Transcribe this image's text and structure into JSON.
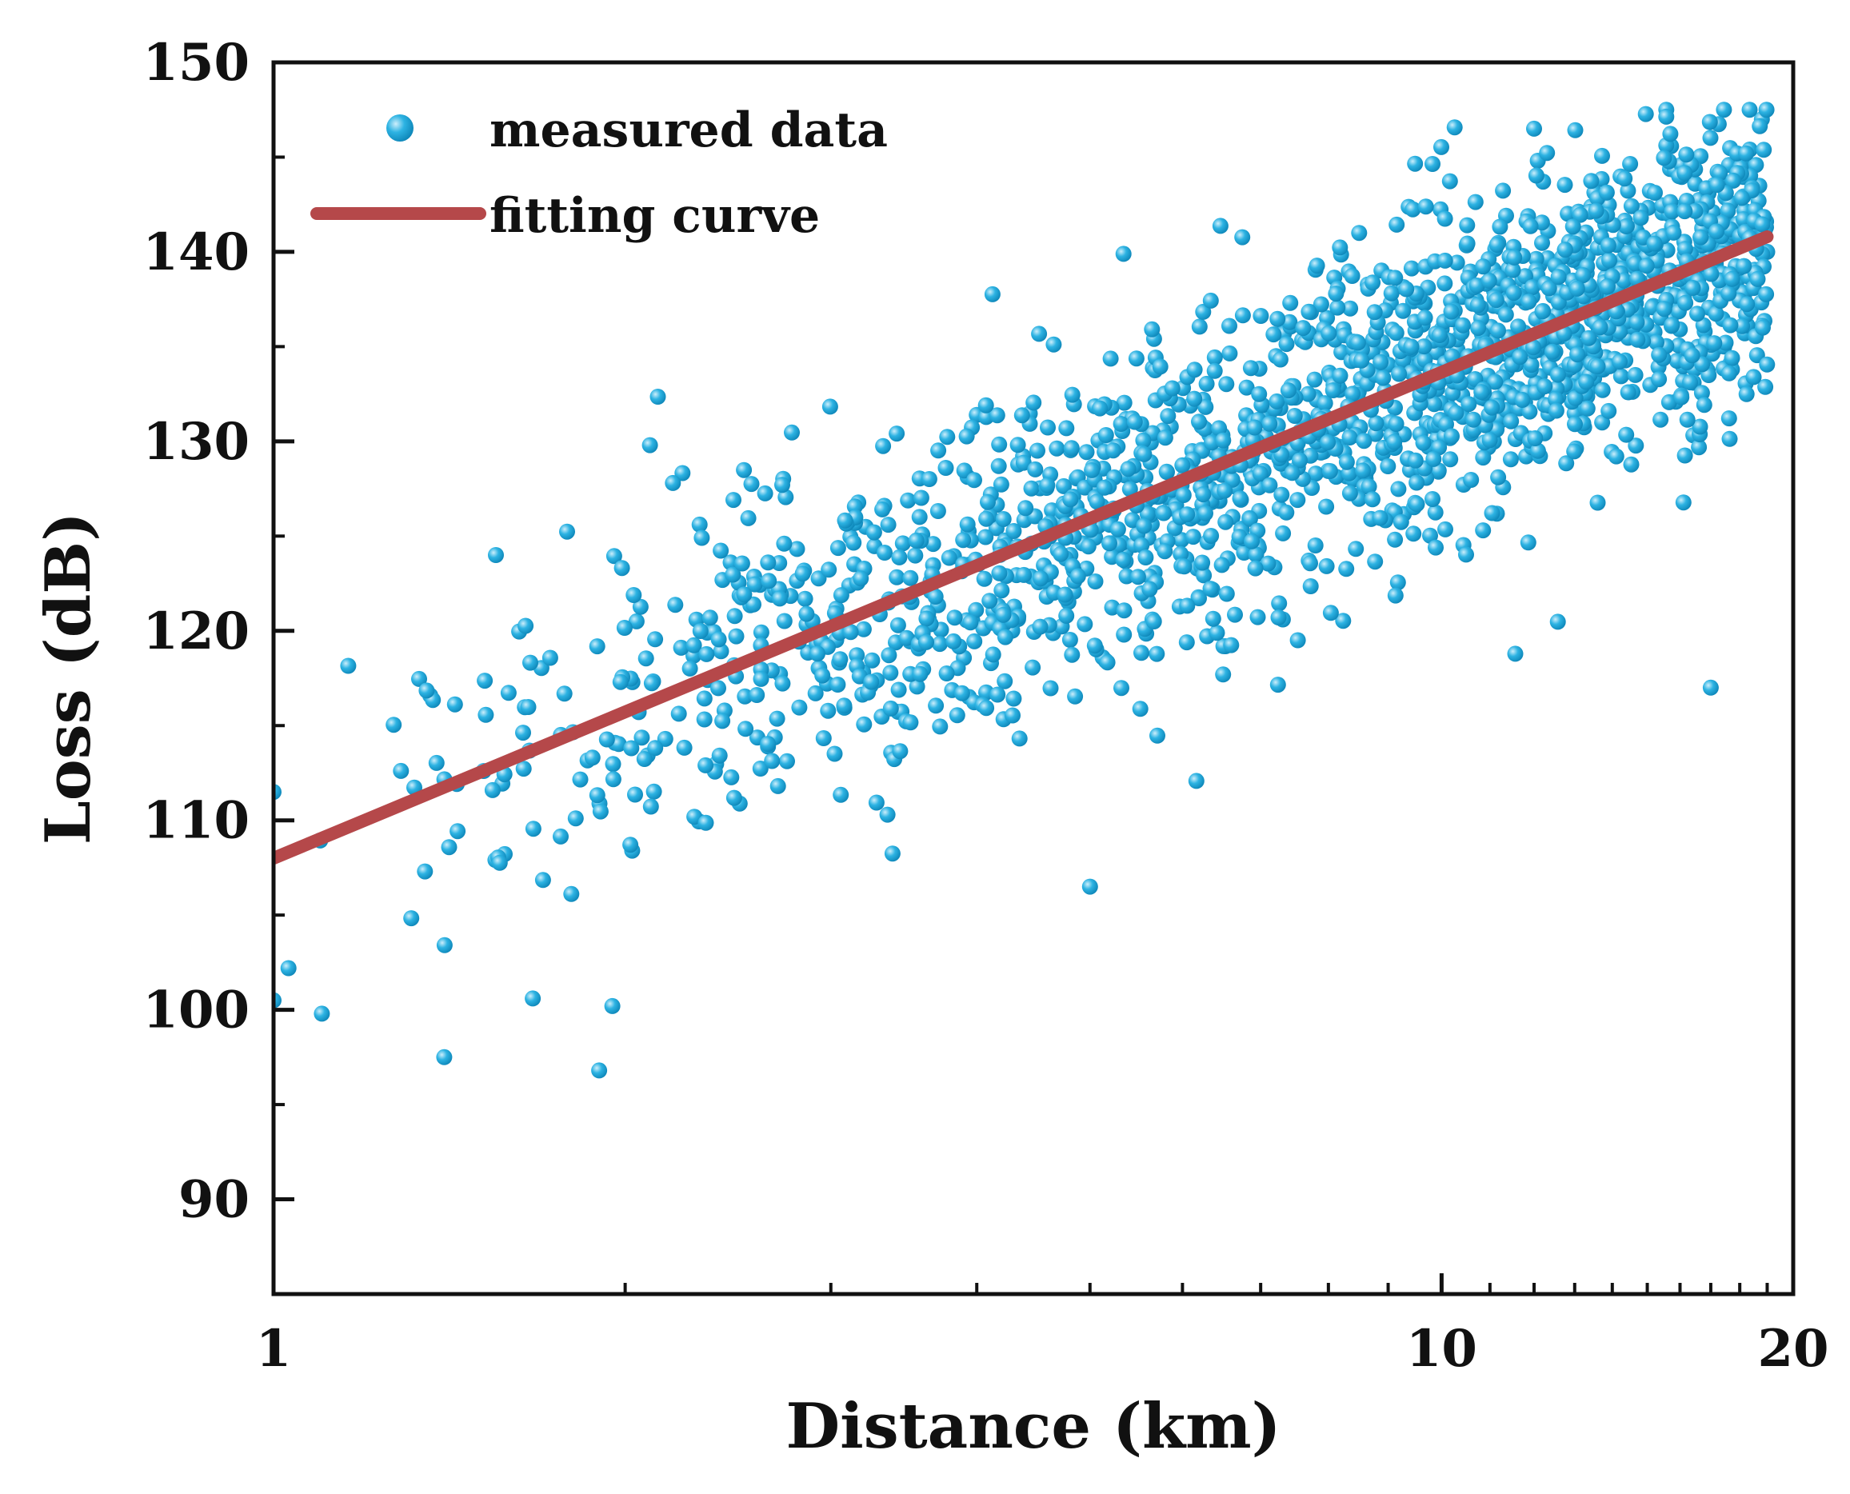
{
  "chart_data": {
    "type": "scatter",
    "title": "",
    "xlabel": "Distance (km)",
    "ylabel": "Loss (dB)",
    "xscale": "log",
    "xlim": [
      1,
      20
    ],
    "ylim": [
      85,
      150
    ],
    "xticks": [
      1,
      10,
      20
    ],
    "xtick_labels": [
      "1",
      "10",
      "20"
    ],
    "yticks": [
      90,
      100,
      110,
      120,
      130,
      140,
      150
    ],
    "ytick_labels": [
      "90",
      "100",
      "110",
      "120",
      "130",
      "140",
      "150"
    ],
    "grid": false,
    "legend_position": "top-left",
    "series": [
      {
        "name": "measured data",
        "kind": "scatter",
        "color": "#1ea8d8",
        "generator": {
          "count": 1900,
          "x_range_km": [
            1,
            19
          ],
          "x_density": "increasing with distance",
          "trend": "follows fitting curve",
          "spread_db": 8,
          "seed": 12345
        },
        "sample_points": [
          {
            "x": 1.0,
            "y": 111.5
          },
          {
            "x": 1.0,
            "y": 100.5
          },
          {
            "x": 1.03,
            "y": 102.2
          },
          {
            "x": 1.1,
            "y": 99.8
          },
          {
            "x": 1.4,
            "y": 97.5
          },
          {
            "x": 1.55,
            "y": 124.0
          },
          {
            "x": 1.9,
            "y": 96.8
          },
          {
            "x": 1.95,
            "y": 100.2
          },
          {
            "x": 2.1,
            "y": 129.8
          },
          {
            "x": 4.0,
            "y": 131.4
          },
          {
            "x": 5.0,
            "y": 106.5
          },
          {
            "x": 6.5,
            "y": 117.7
          },
          {
            "x": 8.5,
            "y": 141.0
          },
          {
            "x": 12.0,
            "y": 146.5
          },
          {
            "x": 17.0,
            "y": 117.0
          },
          {
            "x": 18.8,
            "y": 147.0
          },
          {
            "x": 19.0,
            "y": 140.0
          }
        ]
      },
      {
        "name": "fitting curve",
        "kind": "line",
        "color": "#b5484a",
        "x": [
          1,
          19
        ],
        "y": [
          108.0,
          140.8
        ]
      }
    ],
    "legend": [
      {
        "label": "measured data",
        "marker": "circle"
      },
      {
        "label": "fitting curve",
        "marker": "line"
      }
    ]
  }
}
